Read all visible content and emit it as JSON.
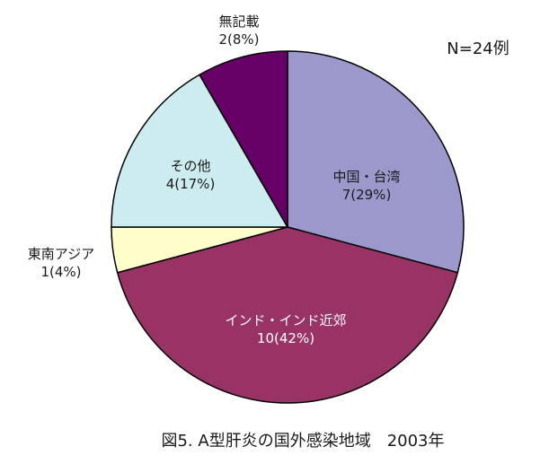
{
  "chart_data": {
    "type": "pie",
    "title": "図5. A型肝炎の国外感染地域　2003年",
    "annotation": "N=24例",
    "total": 24,
    "slices": [
      {
        "label": "中国・台湾",
        "value": 7,
        "percent_label": "7(29%)",
        "color": "#9b99cc"
      },
      {
        "label": "インド・インド近郊",
        "value": 10,
        "percent_label": "10(42%)",
        "color": "#993366"
      },
      {
        "label": "東南アジア",
        "value": 1,
        "percent_label": "1(4%)",
        "color": "#ffffcc"
      },
      {
        "label": "その他",
        "value": 4,
        "percent_label": "4(17%)",
        "color": "#ccecf0"
      },
      {
        "label": "無記載",
        "value": 2,
        "percent_label": "2(8%)",
        "color": "#660066"
      }
    ]
  }
}
